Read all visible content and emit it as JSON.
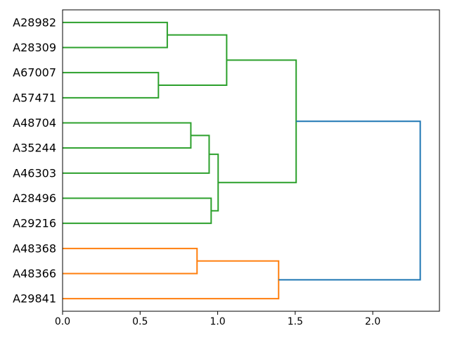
{
  "figure": {
    "background": "#ffffff"
  },
  "chart_data": {
    "type": "dendrogram",
    "orientation": "horizontal, leaves on left, root on right",
    "title": "",
    "xlabel": "",
    "ylabel": "",
    "grid": false,
    "legend": null,
    "xlim": [
      0,
      2.43
    ],
    "xticks": [
      {
        "value": 0.0,
        "label": "0.0"
      },
      {
        "value": 0.5,
        "label": "0.5"
      },
      {
        "value": 1.0,
        "label": "1.0"
      },
      {
        "value": 1.5,
        "label": "1.5"
      },
      {
        "value": 2.0,
        "label": "2.0"
      }
    ],
    "leaves": [
      "A28982",
      "A28309",
      "A67007",
      "A57471",
      "A48704",
      "A35244",
      "A46303",
      "A28496",
      "A29216",
      "A48368",
      "A48366",
      "A29841"
    ],
    "merges": [
      {
        "id": "m1",
        "a": "A28982",
        "b": "A28309",
        "height": 0.675,
        "color_key": "green"
      },
      {
        "id": "m2",
        "a": "A67007",
        "b": "A57471",
        "height": 0.618,
        "color_key": "green"
      },
      {
        "id": "m3",
        "a": "A48704",
        "b": "A35244",
        "height": 0.827,
        "color_key": "green"
      },
      {
        "id": "m4",
        "a": "m3",
        "b": "A46303",
        "height": 0.945,
        "color_key": "green"
      },
      {
        "id": "m5",
        "a": "A28496",
        "b": "A29216",
        "height": 0.958,
        "color_key": "green"
      },
      {
        "id": "m6",
        "a": "m4",
        "b": "m5",
        "height": 1.003,
        "color_key": "green"
      },
      {
        "id": "m7",
        "a": "m1",
        "b": "m2",
        "height": 1.058,
        "color_key": "green"
      },
      {
        "id": "m8",
        "a": "m7",
        "b": "m6",
        "height": 1.506,
        "color_key": "green"
      },
      {
        "id": "m9",
        "a": "A48368",
        "b": "A48366",
        "height": 0.867,
        "color_key": "orange"
      },
      {
        "id": "m10",
        "a": "m9",
        "b": "A29841",
        "height": 1.393,
        "color_key": "orange"
      },
      {
        "id": "m11",
        "a": "m8",
        "b": "m10",
        "height": 2.306,
        "color_key": "blue"
      }
    ],
    "colors": {
      "green": "#2ca02c",
      "orange": "#ff7f0e",
      "blue": "#1f77b4",
      "axis": "#000000",
      "text": "#000000"
    },
    "line_width": 2
  }
}
